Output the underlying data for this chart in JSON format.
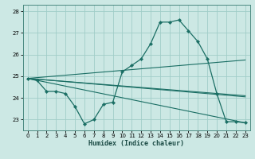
{
  "xlabel": "Humidex (Indice chaleur)",
  "bg_color": "#cce8e4",
  "grid_color": "#a0cdc8",
  "line_color": "#1a6e64",
  "ylim": [
    22.5,
    28.3
  ],
  "xlim": [
    -0.5,
    23.5
  ],
  "yticks": [
    23,
    24,
    25,
    26,
    27
  ],
  "ytick_extra": 28,
  "xticks": [
    0,
    1,
    2,
    3,
    4,
    5,
    6,
    7,
    8,
    9,
    10,
    11,
    12,
    13,
    14,
    15,
    16,
    17,
    18,
    19,
    20,
    21,
    22,
    23
  ],
  "main_series": {
    "x": [
      0,
      1,
      2,
      3,
      4,
      5,
      6,
      7,
      8,
      9,
      10,
      11,
      12,
      13,
      14,
      15,
      16,
      17,
      18,
      19,
      20,
      21,
      22,
      23
    ],
    "y": [
      24.9,
      24.8,
      24.3,
      24.3,
      24.2,
      23.6,
      22.8,
      23.0,
      23.7,
      23.8,
      25.2,
      25.5,
      25.8,
      26.5,
      27.5,
      27.5,
      27.6,
      27.1,
      26.6,
      25.8,
      24.2,
      22.9,
      22.9,
      22.85
    ]
  },
  "straight_lines": [
    {
      "x": [
        0,
        23
      ],
      "y": [
        24.9,
        25.75
      ]
    },
    {
      "x": [
        0,
        23
      ],
      "y": [
        24.9,
        24.1
      ]
    },
    {
      "x": [
        0,
        23
      ],
      "y": [
        24.9,
        24.05
      ]
    },
    {
      "x": [
        0,
        23
      ],
      "y": [
        24.9,
        22.85
      ]
    }
  ]
}
